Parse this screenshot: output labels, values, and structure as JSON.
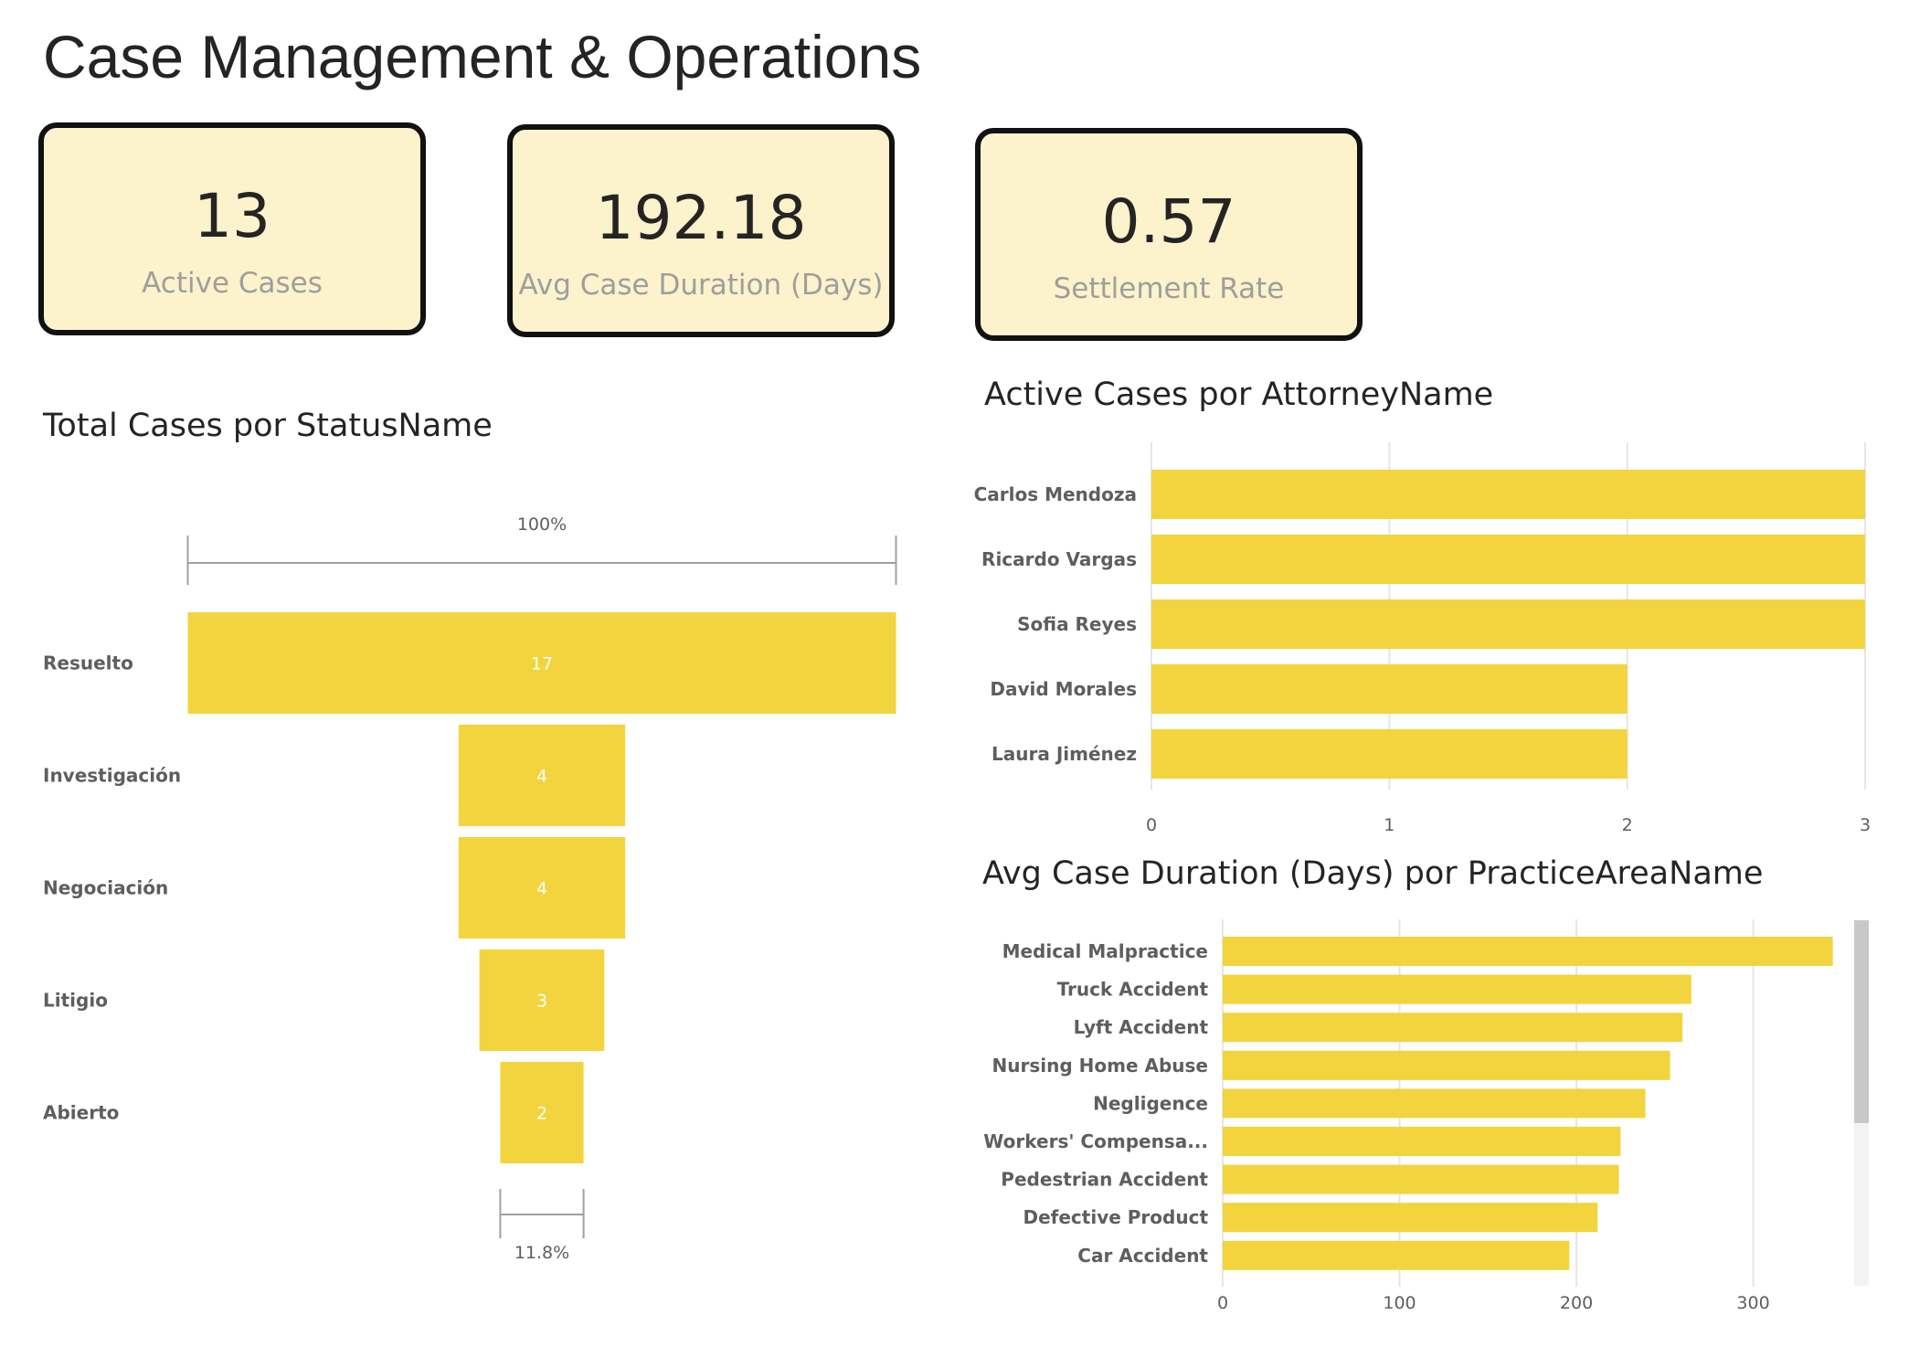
{
  "page": {
    "title": "Case Management & Operations"
  },
  "kpis": [
    {
      "value": "13",
      "label": "Active Cases"
    },
    {
      "value": "192.18",
      "label": "Avg Case Duration (Days)"
    },
    {
      "value": "0.57",
      "label": "Settlement Rate"
    }
  ],
  "colors": {
    "bar": "#f2d43e",
    "card_bg": "#fcf2cc",
    "card_border": "#111111",
    "gridline": "#e6e6e6",
    "scrollbar_thumb": "#c8c8c8",
    "scrollbar_track": "#f3f3f3"
  },
  "chart_data": [
    {
      "type": "funnel",
      "title": "Total Cases por StatusName",
      "categories": [
        "Resuelto",
        "Investigación",
        "Negociación",
        "Litigio",
        "Abierto"
      ],
      "values": [
        17,
        4,
        4,
        3,
        2
      ],
      "top_conversion_label": "100%",
      "bottom_conversion_label": "11.8%"
    },
    {
      "type": "bar",
      "orientation": "horizontal",
      "title": "Active Cases por AttorneyName",
      "categories": [
        "Carlos Mendoza",
        "Ricardo Vargas",
        "Sofia Reyes",
        "David Morales",
        "Laura Jiménez"
      ],
      "values": [
        3,
        3,
        3,
        2,
        2
      ],
      "xlim": [
        0,
        3
      ],
      "xticks": [
        "0",
        "1",
        "2",
        "3"
      ],
      "grid": true
    },
    {
      "type": "bar",
      "orientation": "horizontal",
      "title": "Avg Case Duration (Days) por PracticeAreaName",
      "categories": [
        "Medical Malpractice",
        "Truck Accident",
        "Lyft Accident",
        "Nursing Home Abuse",
        "Negligence",
        "Workers' Compensa...",
        "Pedestrian Accident",
        "Defective Product",
        "Car Accident"
      ],
      "values": [
        345,
        265,
        260,
        253,
        239,
        225,
        224,
        212,
        196
      ],
      "xlim": [
        0,
        370
      ],
      "xticks": [
        "0",
        "100",
        "200",
        "300"
      ],
      "grid": true,
      "scrollbar": true
    }
  ]
}
